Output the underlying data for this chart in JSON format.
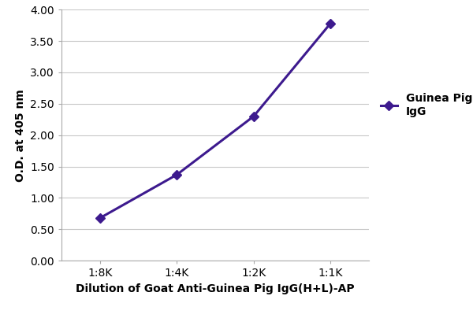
{
  "x_labels": [
    "1:8K",
    "1:4K",
    "1:2K",
    "1:1K"
  ],
  "x_values": [
    1,
    2,
    3,
    4
  ],
  "y_values": [
    0.68,
    1.37,
    2.3,
    3.78
  ],
  "line_color": "#3d1a8e",
  "marker_color": "#3d1a8e",
  "marker_style": "D",
  "marker_size": 6,
  "line_width": 2.2,
  "ylabel": "O.D. at 405 nm",
  "xlabel": "Dilution of Goat Anti-Guinea Pig IgG(H+L)-AP",
  "legend_label": "Guinea Pig\nIgG",
  "ylim": [
    0.0,
    4.0
  ],
  "yticks": [
    0.0,
    0.5,
    1.0,
    1.5,
    2.0,
    2.5,
    3.0,
    3.5,
    4.0
  ],
  "background_color": "#ffffff",
  "grid_color": "#c8c8c8",
  "axis_label_fontsize": 10,
  "tick_fontsize": 10,
  "legend_fontsize": 10
}
